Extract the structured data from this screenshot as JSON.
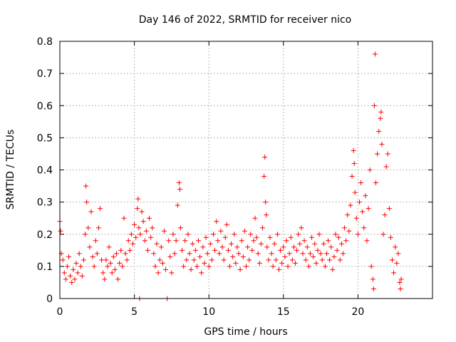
{
  "chart_data": {
    "type": "scatter",
    "title": "Day 146 of 2022, SRMTID for receiver nico",
    "xlabel": "GPS time / hours",
    "ylabel": "SRMTID / TECUs",
    "xlim": [
      0,
      25
    ],
    "ylim": [
      0,
      0.8
    ],
    "xticks": [
      0,
      5,
      10,
      15,
      20
    ],
    "yticks": [
      0,
      0.1,
      0.2,
      0.3,
      0.4,
      0.5,
      0.6,
      0.7,
      0.8
    ],
    "xtick_labels": [
      "0",
      "5",
      "10",
      "15",
      "20"
    ],
    "ytick_labels": [
      "0",
      "0.1",
      "0.2",
      "0.3",
      "0.4",
      "0.5",
      "0.6",
      "0.7",
      "0.8"
    ],
    "grid": true,
    "marker": "plus",
    "series": [
      {
        "name": "SRMTID",
        "color": "#ff0000",
        "points": [
          [
            0.0,
            0.24
          ],
          [
            0.05,
            0.21
          ],
          [
            0.1,
            0.14
          ],
          [
            0.2,
            0.12
          ],
          [
            0.3,
            0.08
          ],
          [
            0.4,
            0.06
          ],
          [
            0.5,
            0.1
          ],
          [
            0.6,
            0.13
          ],
          [
            0.7,
            0.07
          ],
          [
            0.8,
            0.05
          ],
          [
            0.9,
            0.09
          ],
          [
            1.0,
            0.06
          ],
          [
            1.1,
            0.11
          ],
          [
            1.2,
            0.08
          ],
          [
            1.3,
            0.14
          ],
          [
            1.4,
            0.1
          ],
          [
            1.5,
            0.07
          ],
          [
            1.6,
            0.12
          ],
          [
            1.7,
            0.2
          ],
          [
            1.75,
            0.35
          ],
          [
            1.8,
            0.3
          ],
          [
            1.9,
            0.22
          ],
          [
            2.0,
            0.16
          ],
          [
            2.1,
            0.27
          ],
          [
            2.2,
            0.13
          ],
          [
            2.3,
            0.1
          ],
          [
            2.4,
            0.18
          ],
          [
            2.5,
            0.14
          ],
          [
            2.6,
            0.22
          ],
          [
            2.7,
            0.28
          ],
          [
            2.8,
            0.12
          ],
          [
            2.9,
            0.08
          ],
          [
            3.0,
            0.06
          ],
          [
            3.1,
            0.12
          ],
          [
            3.2,
            0.1
          ],
          [
            3.3,
            0.16
          ],
          [
            3.4,
            0.11
          ],
          [
            3.5,
            0.08
          ],
          [
            3.6,
            0.13
          ],
          [
            3.7,
            0.09
          ],
          [
            3.8,
            0.14
          ],
          [
            3.9,
            0.06
          ],
          [
            4.0,
            0.11
          ],
          [
            4.1,
            0.15
          ],
          [
            4.2,
            0.1
          ],
          [
            4.3,
            0.25
          ],
          [
            4.4,
            0.14
          ],
          [
            4.5,
            0.12
          ],
          [
            4.6,
            0.18
          ],
          [
            4.7,
            0.15
          ],
          [
            4.8,
            0.2
          ],
          [
            4.9,
            0.17
          ],
          [
            5.0,
            0.23
          ],
          [
            5.1,
            0.19
          ],
          [
            5.2,
            0.28
          ],
          [
            5.25,
            0.31
          ],
          [
            5.3,
            0.22
          ],
          [
            5.35,
            0.0
          ],
          [
            5.4,
            0.2
          ],
          [
            5.5,
            0.27
          ],
          [
            5.6,
            0.24
          ],
          [
            5.7,
            0.18
          ],
          [
            5.8,
            0.21
          ],
          [
            5.9,
            0.15
          ],
          [
            6.0,
            0.25
          ],
          [
            6.1,
            0.19
          ],
          [
            6.2,
            0.22
          ],
          [
            6.3,
            0.14
          ],
          [
            6.4,
            0.1
          ],
          [
            6.5,
            0.17
          ],
          [
            6.6,
            0.08
          ],
          [
            6.7,
            0.12
          ],
          [
            6.8,
            0.16
          ],
          [
            6.9,
            0.11
          ],
          [
            7.0,
            0.21
          ],
          [
            7.1,
            0.09
          ],
          [
            7.2,
            0.0
          ],
          [
            7.3,
            0.18
          ],
          [
            7.4,
            0.13
          ],
          [
            7.5,
            0.08
          ],
          [
            7.6,
            0.2
          ],
          [
            7.7,
            0.14
          ],
          [
            7.8,
            0.18
          ],
          [
            7.9,
            0.29
          ],
          [
            8.0,
            0.36
          ],
          [
            8.05,
            0.34
          ],
          [
            8.1,
            0.22
          ],
          [
            8.2,
            0.15
          ],
          [
            8.3,
            0.1
          ],
          [
            8.4,
            0.18
          ],
          [
            8.5,
            0.12
          ],
          [
            8.6,
            0.2
          ],
          [
            8.7,
            0.14
          ],
          [
            8.8,
            0.09
          ],
          [
            8.9,
            0.17
          ],
          [
            9.0,
            0.12
          ],
          [
            9.1,
            0.15
          ],
          [
            9.2,
            0.1
          ],
          [
            9.3,
            0.18
          ],
          [
            9.4,
            0.13
          ],
          [
            9.5,
            0.08
          ],
          [
            9.6,
            0.16
          ],
          [
            9.7,
            0.11
          ],
          [
            9.8,
            0.19
          ],
          [
            9.9,
            0.14
          ],
          [
            10.0,
            0.1
          ],
          [
            10.1,
            0.17
          ],
          [
            10.2,
            0.12
          ],
          [
            10.3,
            0.2
          ],
          [
            10.4,
            0.15
          ],
          [
            10.5,
            0.24
          ],
          [
            10.6,
            0.18
          ],
          [
            10.7,
            0.14
          ],
          [
            10.8,
            0.21
          ],
          [
            10.9,
            0.16
          ],
          [
            11.0,
            0.12
          ],
          [
            11.1,
            0.19
          ],
          [
            11.2,
            0.23
          ],
          [
            11.3,
            0.15
          ],
          [
            11.4,
            0.1
          ],
          [
            11.5,
            0.17
          ],
          [
            11.6,
            0.13
          ],
          [
            11.7,
            0.2
          ],
          [
            11.8,
            0.11
          ],
          [
            11.9,
            0.16
          ],
          [
            12.0,
            0.14
          ],
          [
            12.1,
            0.09
          ],
          [
            12.2,
            0.18
          ],
          [
            12.3,
            0.13
          ],
          [
            12.4,
            0.21
          ],
          [
            12.5,
            0.1
          ],
          [
            12.6,
            0.16
          ],
          [
            12.7,
            0.12
          ],
          [
            12.8,
            0.2
          ],
          [
            12.9,
            0.15
          ],
          [
            13.0,
            0.18
          ],
          [
            13.1,
            0.25
          ],
          [
            13.2,
            0.19
          ],
          [
            13.3,
            0.14
          ],
          [
            13.4,
            0.11
          ],
          [
            13.5,
            0.17
          ],
          [
            13.6,
            0.22
          ],
          [
            13.7,
            0.38
          ],
          [
            13.75,
            0.44
          ],
          [
            13.8,
            0.3
          ],
          [
            13.85,
            0.26
          ],
          [
            13.9,
            0.16
          ],
          [
            14.0,
            0.12
          ],
          [
            14.1,
            0.19
          ],
          [
            14.2,
            0.14
          ],
          [
            14.3,
            0.1
          ],
          [
            14.4,
            0.17
          ],
          [
            14.5,
            0.12
          ],
          [
            14.6,
            0.2
          ],
          [
            14.7,
            0.09
          ],
          [
            14.8,
            0.15
          ],
          [
            14.9,
            0.11
          ],
          [
            15.0,
            0.16
          ],
          [
            15.1,
            0.13
          ],
          [
            15.2,
            0.18
          ],
          [
            15.3,
            0.1
          ],
          [
            15.4,
            0.14
          ],
          [
            15.5,
            0.19
          ],
          [
            15.6,
            0.12
          ],
          [
            15.7,
            0.16
          ],
          [
            15.8,
            0.11
          ],
          [
            15.9,
            0.15
          ],
          [
            16.0,
            0.2
          ],
          [
            16.1,
            0.17
          ],
          [
            16.2,
            0.22
          ],
          [
            16.3,
            0.14
          ],
          [
            16.4,
            0.18
          ],
          [
            16.5,
            0.12
          ],
          [
            16.6,
            0.16
          ],
          [
            16.7,
            0.1
          ],
          [
            16.8,
            0.14
          ],
          [
            16.9,
            0.19
          ],
          [
            17.0,
            0.13
          ],
          [
            17.1,
            0.17
          ],
          [
            17.2,
            0.11
          ],
          [
            17.3,
            0.15
          ],
          [
            17.4,
            0.2
          ],
          [
            17.5,
            0.14
          ],
          [
            17.6,
            0.12
          ],
          [
            17.7,
            0.17
          ],
          [
            17.8,
            0.1
          ],
          [
            17.9,
            0.14
          ],
          [
            18.0,
            0.18
          ],
          [
            18.1,
            0.12
          ],
          [
            18.2,
            0.16
          ],
          [
            18.3,
            0.09
          ],
          [
            18.4,
            0.13
          ],
          [
            18.5,
            0.2
          ],
          [
            18.6,
            0.15
          ],
          [
            18.7,
            0.19
          ],
          [
            18.8,
            0.12
          ],
          [
            18.9,
            0.17
          ],
          [
            19.0,
            0.14
          ],
          [
            19.1,
            0.22
          ],
          [
            19.2,
            0.18
          ],
          [
            19.3,
            0.26
          ],
          [
            19.4,
            0.21
          ],
          [
            19.5,
            0.29
          ],
          [
            19.6,
            0.38
          ],
          [
            19.7,
            0.46
          ],
          [
            19.75,
            0.42
          ],
          [
            19.8,
            0.33
          ],
          [
            19.9,
            0.25
          ],
          [
            20.0,
            0.2
          ],
          [
            20.1,
            0.3
          ],
          [
            20.2,
            0.36
          ],
          [
            20.3,
            0.27
          ],
          [
            20.4,
            0.22
          ],
          [
            20.5,
            0.32
          ],
          [
            20.6,
            0.18
          ],
          [
            20.7,
            0.28
          ],
          [
            20.8,
            0.4
          ],
          [
            20.9,
            0.1
          ],
          [
            21.0,
            0.06
          ],
          [
            21.05,
            0.03
          ],
          [
            21.1,
            0.6
          ],
          [
            21.15,
            0.76
          ],
          [
            21.2,
            0.36
          ],
          [
            21.3,
            0.45
          ],
          [
            21.4,
            0.52
          ],
          [
            21.5,
            0.56
          ],
          [
            21.55,
            0.58
          ],
          [
            21.6,
            0.48
          ],
          [
            21.7,
            0.2
          ],
          [
            21.8,
            0.26
          ],
          [
            21.9,
            0.41
          ],
          [
            22.0,
            0.45
          ],
          [
            22.1,
            0.28
          ],
          [
            22.2,
            0.19
          ],
          [
            22.3,
            0.12
          ],
          [
            22.4,
            0.08
          ],
          [
            22.5,
            0.16
          ],
          [
            22.6,
            0.11
          ],
          [
            22.7,
            0.14
          ],
          [
            22.8,
            0.05
          ],
          [
            22.85,
            0.03
          ],
          [
            22.9,
            0.06
          ]
        ]
      }
    ]
  }
}
